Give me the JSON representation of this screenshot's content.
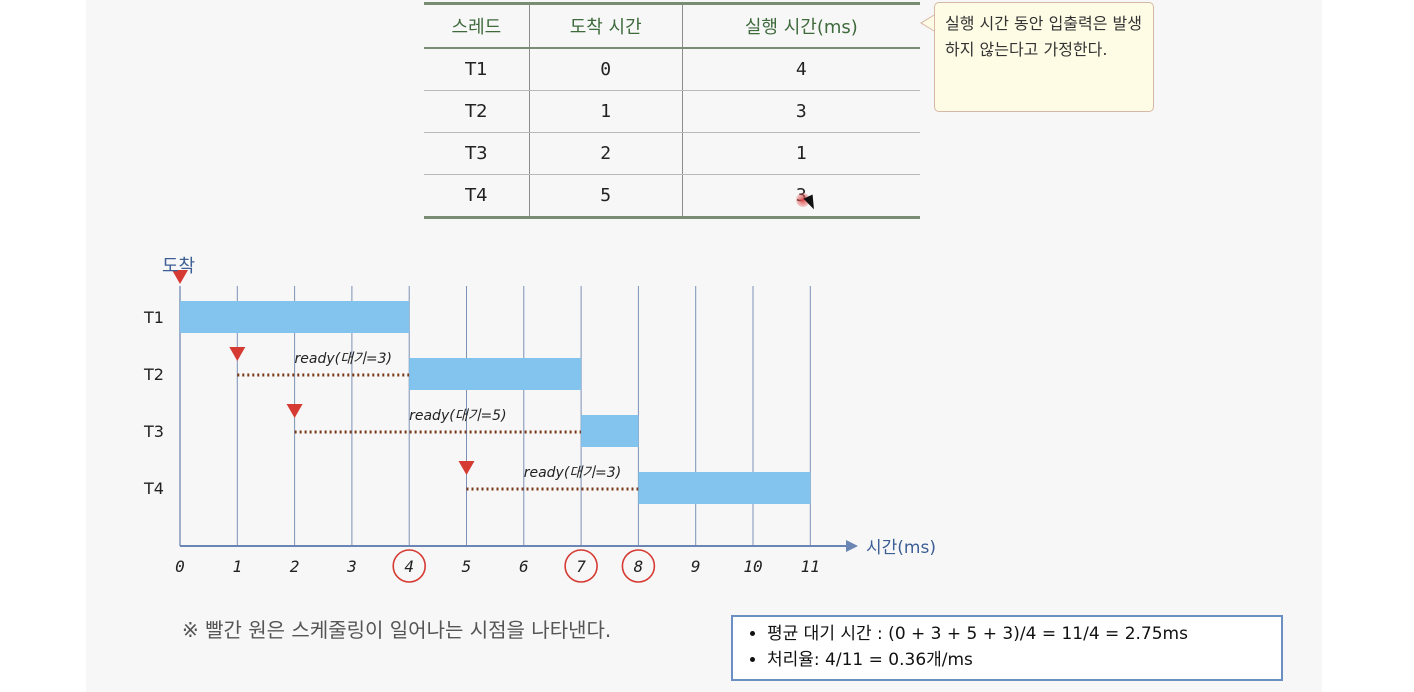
{
  "table": {
    "headers": [
      "스레드",
      "도착 시간",
      "실행 시간(ms)"
    ],
    "rows": [
      [
        "T1",
        "0",
        "4"
      ],
      [
        "T2",
        "1",
        "3"
      ],
      [
        "T3",
        "2",
        "1"
      ],
      [
        "T4",
        "5",
        "3"
      ]
    ]
  },
  "note": {
    "text": "실행 시간 동안 입출력은 발생하지 않는다고 가정한다."
  },
  "diagram": {
    "arrival_label": "도착",
    "time_axis_label": "시간(ms)",
    "ticks": [
      "0",
      "1",
      "2",
      "3",
      "4",
      "5",
      "6",
      "7",
      "8",
      "9",
      "10",
      "11"
    ],
    "scheduling_points": [
      4,
      7,
      8
    ],
    "threads": [
      {
        "name": "T1",
        "arrival": 0,
        "start": 0,
        "end": 4,
        "ready_label": ""
      },
      {
        "name": "T2",
        "arrival": 1,
        "start": 4,
        "end": 7,
        "ready_label": "ready(대기=3)"
      },
      {
        "name": "T3",
        "arrival": 2,
        "start": 7,
        "end": 8,
        "ready_label": "ready(대기=5)"
      },
      {
        "name": "T4",
        "arrival": 5,
        "start": 8,
        "end": 11,
        "ready_label": "ready(대기=3)"
      }
    ],
    "colors": {
      "bar": "#82c4ee",
      "grid": "#7b91b6",
      "arrival_marker": "#d53a33",
      "ready_line": "#7a3a18",
      "circle": "#d53a33",
      "axis": "#6b85b4"
    }
  },
  "footnote": "※ 빨간 원은 스케줄링이 일어나는 시점을 나타낸다.",
  "summary": {
    "lines": [
      "평균 대기 시간 : (0 + 3 + 5 + 3)/4 = 11/4 = 2.75ms",
      "처리율: 4/11 = 0.36개/ms"
    ]
  }
}
